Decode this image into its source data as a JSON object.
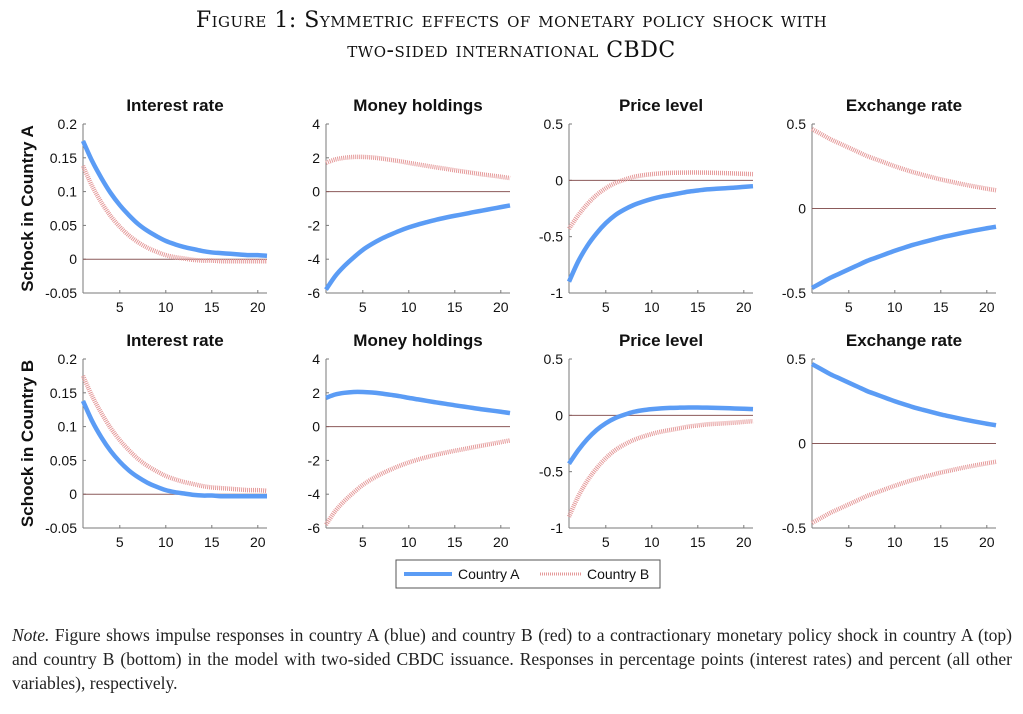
{
  "figure": {
    "title_line1": "Figure 1: Symmetric effects of monetary policy shock with",
    "title_line2": "two-sided international CBDC"
  },
  "note": {
    "label": "Note.",
    "text": " Figure shows impulse responses in country A (blue) and country B (red) to a contractionary monetary policy shock in country A (top) and country B (bottom) in the model with two-sided CBDC issuance. Responses in percentage points (interest rates) and percent (all other variables), respectively."
  },
  "colors": {
    "country_a": "#5b9cf5",
    "country_b": "#e59a9a",
    "zero_line": "#8b5a5a",
    "axis": "#7a7a7a"
  },
  "chart_data": {
    "type": "line",
    "x": [
      1,
      2,
      3,
      4,
      5,
      6,
      7,
      8,
      9,
      10,
      11,
      12,
      13,
      14,
      15,
      16,
      17,
      18,
      19,
      20,
      21
    ],
    "xlim": [
      1,
      21
    ],
    "xticks": [
      5,
      10,
      15,
      20
    ],
    "legend": {
      "placement": "bottom-center",
      "entries": [
        {
          "name": "Country A",
          "style": "solid"
        },
        {
          "name": "Country B",
          "style": "dotted"
        }
      ]
    },
    "rows": [
      {
        "label": "Schock in Country A"
      },
      {
        "label": "Schock in Country B"
      }
    ],
    "panels": [
      {
        "row": 0,
        "title": "Interest rate",
        "ylim": [
          -0.05,
          0.2
        ],
        "yticks": [
          "0.2",
          "0.15",
          "0.1",
          "0.05",
          "0",
          "-0.05"
        ],
        "ytick_values": [
          0.2,
          0.15,
          0.1,
          0.05,
          0,
          -0.05
        ],
        "series": [
          {
            "name": "Country A",
            "values": [
              0.175,
              0.145,
              0.12,
              0.098,
              0.08,
              0.065,
              0.052,
              0.042,
              0.034,
              0.027,
              0.022,
              0.018,
              0.015,
              0.012,
              0.01,
              0.009,
              0.008,
              0.007,
              0.006,
              0.006,
              0.005
            ]
          },
          {
            "name": "Country B",
            "values": [
              0.138,
              0.108,
              0.084,
              0.064,
              0.048,
              0.035,
              0.025,
              0.017,
              0.011,
              0.006,
              0.003,
              0.001,
              -0.001,
              -0.002,
              -0.002,
              -0.003,
              -0.003,
              -0.003,
              -0.003,
              -0.003,
              -0.003
            ]
          }
        ]
      },
      {
        "row": 0,
        "title": "Money holdings",
        "ylim": [
          -6,
          4
        ],
        "yticks": [
          "4",
          "2",
          "0",
          "-2",
          "-4",
          "-6"
        ],
        "ytick_values": [
          4,
          2,
          0,
          -2,
          -4,
          -6
        ],
        "series": [
          {
            "name": "Country A",
            "values": [
              -5.8,
              -5.0,
              -4.4,
              -3.9,
              -3.45,
              -3.1,
              -2.8,
              -2.55,
              -2.32,
              -2.12,
              -1.95,
              -1.8,
              -1.66,
              -1.54,
              -1.43,
              -1.33,
              -1.22,
              -1.12,
              -1.02,
              -0.92,
              -0.82
            ]
          },
          {
            "name": "Country B",
            "values": [
              1.7,
              1.9,
              2.0,
              2.05,
              2.05,
              2.02,
              1.96,
              1.88,
              1.8,
              1.7,
              1.61,
              1.52,
              1.43,
              1.35,
              1.26,
              1.18,
              1.1,
              1.02,
              0.95,
              0.88,
              0.8
            ]
          }
        ]
      },
      {
        "row": 0,
        "title": "Price level",
        "ylim": [
          -1,
          0.5
        ],
        "yticks": [
          "0.5",
          "0",
          "-0.5",
          "-1"
        ],
        "ytick_values": [
          0.5,
          0,
          -0.5,
          -1
        ],
        "series": [
          {
            "name": "Country A",
            "values": [
              -0.9,
              -0.72,
              -0.58,
              -0.47,
              -0.38,
              -0.31,
              -0.26,
              -0.22,
              -0.19,
              -0.165,
              -0.145,
              -0.13,
              -0.115,
              -0.1,
              -0.09,
              -0.08,
              -0.075,
              -0.07,
              -0.065,
              -0.058,
              -0.052
            ]
          },
          {
            "name": "Country B",
            "values": [
              -0.43,
              -0.31,
              -0.21,
              -0.13,
              -0.07,
              -0.025,
              0.005,
              0.03,
              0.045,
              0.055,
              0.062,
              0.066,
              0.068,
              0.069,
              0.069,
              0.068,
              0.066,
              0.064,
              0.061,
              0.058,
              0.055
            ]
          }
        ]
      },
      {
        "row": 0,
        "title": "Exchange rate",
        "ylim": [
          -0.5,
          0.5
        ],
        "yticks": [
          "0.5",
          "0",
          "-0.5"
        ],
        "ytick_values": [
          0.5,
          0,
          -0.5
        ],
        "series": [
          {
            "name": "Country A",
            "values": [
              -0.47,
              -0.44,
              -0.41,
              -0.385,
              -0.36,
              -0.335,
              -0.31,
              -0.29,
              -0.27,
              -0.25,
              -0.232,
              -0.215,
              -0.2,
              -0.186,
              -0.172,
              -0.16,
              -0.148,
              -0.137,
              -0.127,
              -0.117,
              -0.108
            ]
          },
          {
            "name": "Country B",
            "values": [
              0.47,
              0.44,
              0.41,
              0.385,
              0.36,
              0.335,
              0.31,
              0.29,
              0.27,
              0.25,
              0.232,
              0.215,
              0.2,
              0.186,
              0.172,
              0.16,
              0.148,
              0.137,
              0.127,
              0.117,
              0.108
            ]
          }
        ]
      },
      {
        "row": 1,
        "title": "Interest rate",
        "ylim": [
          -0.05,
          0.2
        ],
        "yticks": [
          "0.2",
          "0.15",
          "0.1",
          "0.05",
          "0",
          "-0.05"
        ],
        "ytick_values": [
          0.2,
          0.15,
          0.1,
          0.05,
          0,
          -0.05
        ],
        "series": [
          {
            "name": "Country A",
            "values": [
              0.138,
              0.108,
              0.084,
              0.064,
              0.048,
              0.035,
              0.025,
              0.017,
              0.011,
              0.006,
              0.003,
              0.001,
              -0.001,
              -0.002,
              -0.002,
              -0.003,
              -0.003,
              -0.003,
              -0.003,
              -0.003,
              -0.003
            ]
          },
          {
            "name": "Country B",
            "values": [
              0.175,
              0.145,
              0.12,
              0.098,
              0.08,
              0.065,
              0.052,
              0.042,
              0.034,
              0.027,
              0.022,
              0.018,
              0.015,
              0.012,
              0.01,
              0.009,
              0.008,
              0.007,
              0.006,
              0.006,
              0.005
            ]
          }
        ]
      },
      {
        "row": 1,
        "title": "Money holdings",
        "ylim": [
          -6,
          4
        ],
        "yticks": [
          "4",
          "2",
          "0",
          "-2",
          "-4",
          "-6"
        ],
        "ytick_values": [
          4,
          2,
          0,
          -2,
          -4,
          -6
        ],
        "series": [
          {
            "name": "Country A",
            "values": [
              1.7,
              1.9,
              2.0,
              2.05,
              2.05,
              2.02,
              1.96,
              1.88,
              1.8,
              1.7,
              1.61,
              1.52,
              1.43,
              1.35,
              1.26,
              1.18,
              1.1,
              1.02,
              0.95,
              0.88,
              0.8
            ]
          },
          {
            "name": "Country B",
            "values": [
              -5.8,
              -5.0,
              -4.4,
              -3.9,
              -3.45,
              -3.1,
              -2.8,
              -2.55,
              -2.32,
              -2.12,
              -1.95,
              -1.8,
              -1.66,
              -1.54,
              -1.43,
              -1.33,
              -1.22,
              -1.12,
              -1.02,
              -0.92,
              -0.82
            ]
          }
        ]
      },
      {
        "row": 1,
        "title": "Price level",
        "ylim": [
          -1,
          0.5
        ],
        "yticks": [
          "0.5",
          "0",
          "-0.5",
          "-1"
        ],
        "ytick_values": [
          0.5,
          0,
          -0.5,
          -1
        ],
        "series": [
          {
            "name": "Country A",
            "values": [
              -0.43,
              -0.31,
              -0.21,
              -0.13,
              -0.07,
              -0.025,
              0.005,
              0.03,
              0.045,
              0.055,
              0.062,
              0.066,
              0.068,
              0.069,
              0.069,
              0.068,
              0.066,
              0.064,
              0.061,
              0.058,
              0.055
            ]
          },
          {
            "name": "Country B",
            "values": [
              -0.9,
              -0.72,
              -0.58,
              -0.47,
              -0.38,
              -0.31,
              -0.26,
              -0.22,
              -0.19,
              -0.165,
              -0.145,
              -0.13,
              -0.115,
              -0.1,
              -0.09,
              -0.08,
              -0.075,
              -0.07,
              -0.065,
              -0.058,
              -0.052
            ]
          }
        ]
      },
      {
        "row": 1,
        "title": "Exchange rate",
        "ylim": [
          -0.5,
          0.5
        ],
        "yticks": [
          "0.5",
          "0",
          "-0.5"
        ],
        "ytick_values": [
          0.5,
          0,
          -0.5
        ],
        "series": [
          {
            "name": "Country A",
            "values": [
              0.47,
              0.44,
              0.41,
              0.385,
              0.36,
              0.335,
              0.31,
              0.29,
              0.27,
              0.25,
              0.232,
              0.215,
              0.2,
              0.186,
              0.172,
              0.16,
              0.148,
              0.137,
              0.127,
              0.117,
              0.108
            ]
          },
          {
            "name": "Country B",
            "values": [
              -0.47,
              -0.44,
              -0.41,
              -0.385,
              -0.36,
              -0.335,
              -0.31,
              -0.29,
              -0.27,
              -0.25,
              -0.232,
              -0.215,
              -0.2,
              -0.186,
              -0.172,
              -0.16,
              -0.148,
              -0.137,
              -0.127,
              -0.117,
              -0.108
            ]
          }
        ]
      }
    ]
  }
}
